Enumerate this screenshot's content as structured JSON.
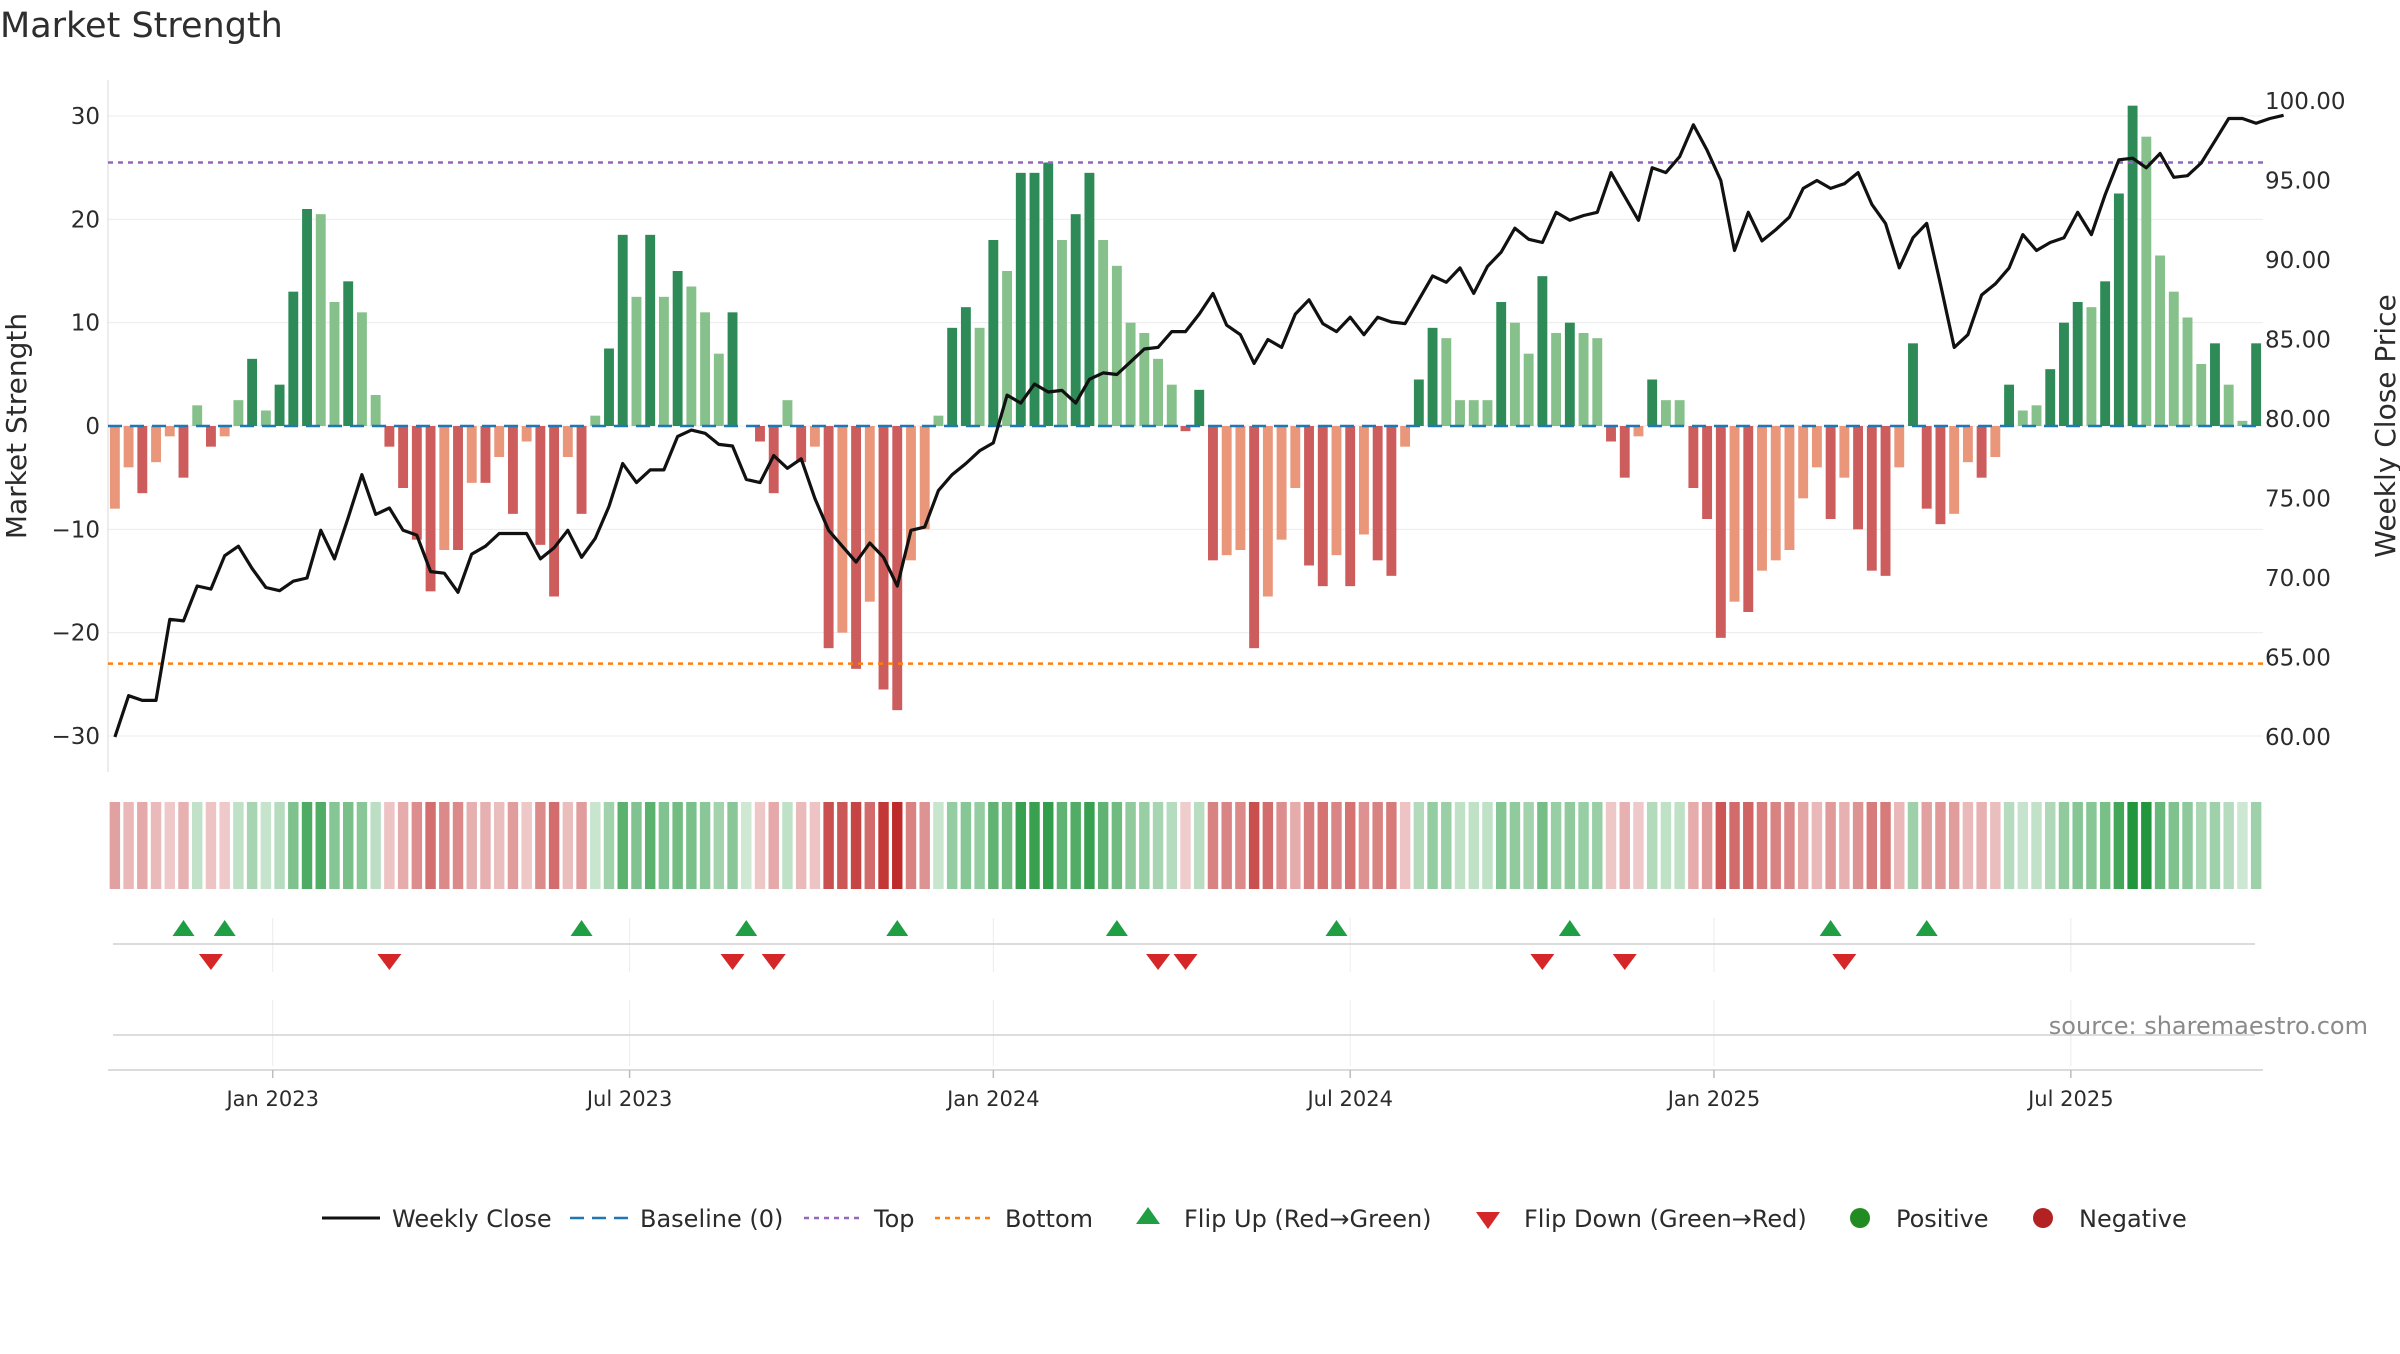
{
  "chart_data": {
    "type": "bar",
    "title": "Market Strength",
    "ylabel": "Market Strength",
    "y2label": "Weekly Close Price",
    "ylim": [
      -33,
      33
    ],
    "y2lim": [
      57.0,
      101.0
    ],
    "y_ticks": [
      30,
      20,
      10,
      0,
      -10,
      -20,
      -30
    ],
    "y_tick_labels": [
      "30",
      "20",
      "10",
      "0",
      "−10",
      "−20",
      "−30"
    ],
    "y2_ticks": [
      "100.00",
      "95.00",
      "90.00",
      "85.00",
      "80.00",
      "75.00",
      "70.00",
      "65.00",
      "60.00"
    ],
    "x_tick_labels": [
      "Jan 2023",
      "Jul 2023",
      "Jan 2024",
      "Jul 2024",
      "Jan 2025",
      "Jul 2025"
    ],
    "x_tick_weeks": [
      12,
      38,
      64.5,
      90.5,
      117,
      143
    ],
    "top_line": 25.5,
    "bottom_line": -23,
    "baseline": 0,
    "strength": [
      -8,
      -4,
      -6.5,
      -3.5,
      -1,
      -5,
      2,
      -2,
      -1,
      2.5,
      6.5,
      1.5,
      4,
      13,
      21,
      20.5,
      12,
      14,
      11,
      3,
      -2,
      -6,
      -11,
      -16,
      -12,
      -12,
      -5.5,
      -5.5,
      -3,
      -8.5,
      -1.5,
      -11.5,
      -16.5,
      -3,
      -8.5,
      1,
      7.5,
      18.5,
      12.5,
      18.5,
      12.5,
      15,
      13.5,
      11,
      7,
      11,
      0,
      -1.5,
      -6.5,
      2.5,
      -3.5,
      -2,
      -21.5,
      -20,
      -23.5,
      -17,
      -25.5,
      -27.5,
      -13,
      -10,
      1,
      9.5,
      11.5,
      9.5,
      18,
      15,
      24.5,
      24.5,
      25.5,
      18,
      20.5,
      24.5,
      18,
      15.5,
      10,
      9,
      6.5,
      4,
      -0.5,
      3.5,
      -13,
      -12.5,
      -12,
      -21.5,
      -16.5,
      -11,
      -6,
      -13.5,
      -15.5,
      -12.5,
      -15.5,
      -10.5,
      -13,
      -14.5,
      -2,
      4.5,
      9.5,
      8.5,
      2.5,
      2.5,
      2.5,
      12,
      10,
      7,
      14.5,
      9,
      10,
      9,
      8.5,
      -1.5,
      -5,
      -1,
      4.5,
      2.5,
      2.5,
      -6,
      -9,
      -20.5,
      -17,
      -18,
      -14,
      -13,
      -12,
      -7,
      -4,
      -9,
      -5,
      -10,
      -14,
      -14.5,
      -4,
      8,
      -8,
      -9.5,
      -8.5,
      -3.5,
      -5,
      -3,
      4,
      1.5,
      2,
      5.5,
      10,
      12,
      11.5,
      14,
      22.5,
      31,
      28,
      16.5,
      13,
      10.5,
      6,
      8,
      4,
      0.5,
      8
    ],
    "price": [
      60.0,
      62.6,
      62.3,
      62.3,
      67.4,
      67.3,
      69.5,
      69.3,
      71.4,
      72.0,
      70.6,
      69.4,
      69.2,
      69.8,
      70.0,
      73.0,
      71.2,
      73.8,
      76.5,
      74.0,
      74.4,
      73.0,
      72.7,
      70.4,
      70.3,
      69.1,
      71.5,
      72.0,
      72.8,
      72.8,
      72.8,
      71.2,
      71.9,
      73.0,
      71.3,
      72.5,
      74.5,
      77.2,
      76.0,
      76.8,
      76.8,
      78.9,
      79.3,
      79.1,
      78.4,
      78.3,
      76.2,
      76.0,
      77.7,
      76.9,
      77.5,
      75.0,
      73.0,
      72.0,
      71.0,
      72.2,
      71.3,
      69.5,
      73.0,
      73.2,
      75.5,
      76.5,
      77.2,
      78.0,
      78.5,
      81.5,
      81.0,
      82.2,
      81.7,
      81.8,
      81.0,
      82.5,
      82.9,
      82.8,
      83.6,
      84.4,
      84.5,
      85.5,
      85.5,
      86.6,
      87.9,
      85.9,
      85.3,
      83.5,
      85.0,
      84.5,
      86.6,
      87.5,
      86.0,
      85.5,
      86.4,
      85.3,
      86.4,
      86.1,
      86.0,
      87.5,
      89.0,
      88.6,
      89.5,
      87.9,
      89.6,
      90.5,
      92.0,
      91.3,
      91.1,
      93.0,
      92.5,
      92.8,
      93.0,
      95.5,
      94.0,
      92.5,
      95.8,
      95.5,
      96.5,
      98.5,
      96.9,
      95.0,
      90.6,
      93.0,
      91.2,
      91.9,
      92.7,
      94.5,
      95.0,
      94.5,
      94.8,
      95.5,
      93.5,
      92.3,
      89.5,
      91.4,
      92.3,
      88.5,
      84.5,
      85.3,
      87.8,
      88.5,
      89.5,
      91.6,
      90.6,
      91.1,
      91.4,
      93.0,
      91.6,
      94.1,
      96.3,
      96.4,
      95.8,
      96.7,
      95.2,
      95.3,
      96.1,
      97.5,
      98.9,
      98.9,
      98.6,
      98.9,
      99.1
    ],
    "bar_colors": {
      "strong_positive": "#2e8b57",
      "weak_positive": "#86c08a",
      "strong_negative": "#cd5c5c",
      "weak_negative": "#e9967a"
    },
    "line_colors": {
      "weekly_close": "#111111",
      "baseline": "#1f77b4",
      "top": "#9467bd",
      "bottom": "#ff7f0e",
      "flip_up": "#1f9e44",
      "flip_down": "#d62728",
      "positive": "#228b22",
      "negative": "#b22222"
    },
    "flip_up_weeks": [
      5,
      8,
      34,
      46,
      57,
      73,
      89,
      106,
      125,
      132
    ],
    "flip_down_weeks": [
      7,
      20,
      45,
      48,
      76,
      78,
      104,
      110,
      126
    ],
    "source_text": "source: sharemaestro.com",
    "legend": [
      {
        "label": "Weekly Close",
        "kind": "line",
        "color_key": "weekly_close"
      },
      {
        "label": "Baseline (0)",
        "kind": "dash",
        "color_key": "baseline"
      },
      {
        "label": "Top",
        "kind": "dot",
        "color_key": "top"
      },
      {
        "label": "Bottom",
        "kind": "dot",
        "color_key": "bottom"
      },
      {
        "label": "Flip Up (Red→Green)",
        "kind": "tri-up",
        "color_key": "flip_up"
      },
      {
        "label": "Flip Down (Green→Red)",
        "kind": "tri-down",
        "color_key": "flip_down"
      },
      {
        "label": "Positive",
        "kind": "circle",
        "color_key": "positive"
      },
      {
        "label": "Negative",
        "kind": "circle",
        "color_key": "negative"
      }
    ]
  }
}
